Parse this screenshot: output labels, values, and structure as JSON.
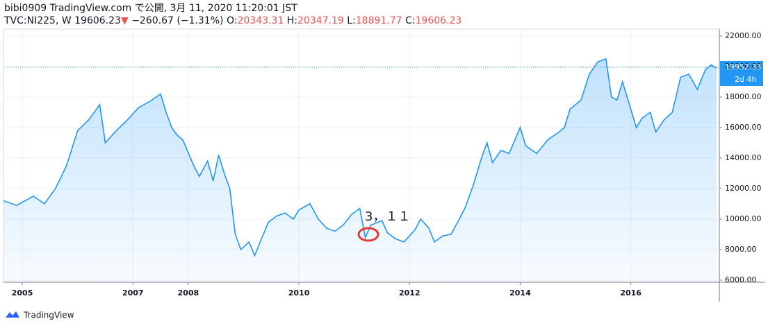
{
  "chart_data": {
    "type": "area",
    "title": "bibi0909 TradingView.com で公開, 3月 11, 2020 11:20:01 JST",
    "legend": {
      "symbol": "TVC:NI225, W 19606.23",
      "arrow": "▼",
      "change": "−260.67 (−1.31%)",
      "ohlc": [
        {
          "label": "O:",
          "value": 20343.31
        },
        {
          "label": "H:",
          "value": 20347.19
        },
        {
          "label": "L:",
          "value": 18891.77
        },
        {
          "label": "C:",
          "value": 19606.23
        }
      ]
    },
    "color": "#2196f3",
    "x": [
      2004.66,
      2004.9,
      2005.2,
      2005.4,
      2005.6,
      2005.8,
      2006.0,
      2006.2,
      2006.4,
      2006.5,
      2006.7,
      2006.9,
      2007.1,
      2007.3,
      2007.5,
      2007.6,
      2007.7,
      2007.8,
      2007.9,
      2008.1,
      2008.2,
      2008.35,
      2008.45,
      2008.55,
      2008.65,
      2008.75,
      2008.85,
      2008.95,
      2009.1,
      2009.2,
      2009.3,
      2009.45,
      2009.6,
      2009.75,
      2009.9,
      2010.0,
      2010.2,
      2010.35,
      2010.5,
      2010.65,
      2010.8,
      2010.95,
      2011.1,
      2011.2,
      2011.3,
      2011.5,
      2011.6,
      2011.75,
      2011.9,
      2012.1,
      2012.2,
      2012.35,
      2012.45,
      2012.6,
      2012.75,
      2012.9,
      2013.0,
      2013.15,
      2013.3,
      2013.4,
      2013.5,
      2013.65,
      2013.8,
      2014.0,
      2014.1,
      2014.3,
      2014.5,
      2014.7,
      2014.8,
      2014.9,
      2015.1,
      2015.25,
      2015.4,
      2015.55,
      2015.65,
      2015.75,
      2015.85,
      2016.0,
      2016.1,
      2016.2,
      2016.35,
      2016.45,
      2016.6,
      2016.75,
      2016.9,
      2017.05,
      2017.2,
      2017.35,
      2017.45,
      2017.55
    ],
    "values": [
      11200,
      10900,
      11500,
      11000,
      12000,
      13500,
      15800,
      16500,
      17500,
      15000,
      15800,
      16500,
      17300,
      17700,
      18200,
      17000,
      16000,
      15500,
      15200,
      13500,
      12800,
      13800,
      12500,
      14200,
      13000,
      12000,
      9000,
      8000,
      8500,
      7600,
      8500,
      9800,
      10200,
      10400,
      10000,
      10600,
      11000,
      10000,
      9400,
      9200,
      9600,
      10300,
      10700,
      8800,
      9600,
      9900,
      9100,
      8700,
      8500,
      9300,
      10000,
      9400,
      8500,
      8900,
      9000,
      10000,
      10700,
      12200,
      14000,
      15000,
      13700,
      14500,
      14300,
      16000,
      14800,
      14300,
      15200,
      15700,
      16000,
      17200,
      17800,
      19500,
      20300,
      20500,
      18000,
      17800,
      19000,
      17200,
      16000,
      16600,
      17000,
      15700,
      16500,
      17000,
      19300,
      19500,
      18500,
      19800,
      20100,
      19900
    ],
    "xlim": [
      2004.66,
      2017.6
    ],
    "xticks": [
      2005,
      2007,
      2008,
      2010,
      2012,
      2014,
      2016
    ],
    "ylim": [
      5860,
      22450
    ],
    "yticks": [
      {
        "value": 6000,
        "label": "6000.00"
      },
      {
        "value": 8000,
        "label": "8000.00"
      },
      {
        "value": 10000,
        "label": "10000.00"
      },
      {
        "value": 12000,
        "label": "12000.00"
      },
      {
        "value": 14000,
        "label": "14000.00"
      },
      {
        "value": 16000,
        "label": "16000.00"
      },
      {
        "value": 18000,
        "label": "18000.00"
      },
      {
        "value": 20000,
        "label": "20000.00"
      },
      {
        "value": 22000,
        "label": "22000.00"
      }
    ],
    "grid": true,
    "last_price": 19952.33,
    "countdown": "2d 4h",
    "annotation": "3，１１",
    "brand": "TradingView"
  }
}
